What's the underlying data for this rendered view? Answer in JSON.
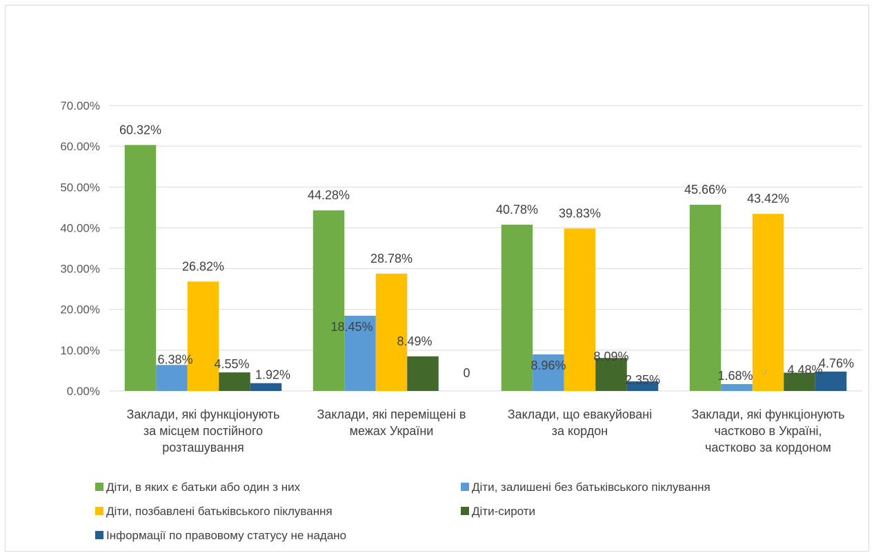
{
  "chart_data": {
    "type": "bar",
    "title": "",
    "xlabel": "",
    "ylabel": "",
    "ylim": [
      0,
      0.7
    ],
    "y_ticks": [
      0,
      0.1,
      0.2,
      0.3,
      0.4,
      0.5,
      0.6,
      0.7
    ],
    "y_tick_labels": [
      "0.00%",
      "10.00%",
      "20.00%",
      "30.00%",
      "40.00%",
      "50.00%",
      "60.00%",
      "70.00%"
    ],
    "grid": true,
    "legend_position": "bottom",
    "categories": [
      [
        "Заклади, які функціонують",
        "за місцем постійного",
        "розташування"
      ],
      [
        "Заклади, які переміщені в",
        "межах України"
      ],
      [
        "Заклади, що евакуйовані",
        "за кордон"
      ],
      [
        "Заклади, які функціонують",
        "частково в Україні,",
        "частково за кордоном"
      ]
    ],
    "series": [
      {
        "name": "Діти, в яких є батьки або один з них",
        "color": "#70ad47",
        "values": [
          0.6032,
          0.4428,
          0.4078,
          0.4566
        ],
        "labels": [
          "60.32%",
          "44.28%",
          "40.78%",
          "45.66%"
        ]
      },
      {
        "name": "Діти, залишені без батьківського піклування",
        "color": "#5b9bd5",
        "values": [
          0.0638,
          0.1845,
          0.0896,
          0.0168
        ],
        "labels": [
          "6.38%",
          "18.45%",
          "8.96%",
          "1.68%"
        ]
      },
      {
        "name": "Діти, позбавлені батьківського піклування",
        "color": "#ffc000",
        "values": [
          0.2682,
          0.2878,
          0.3983,
          0.4342
        ],
        "labels": [
          "26.82%",
          "28.78%",
          "39.83%",
          "43.42%"
        ]
      },
      {
        "name": "Діти-сироти",
        "color": "#43682b",
        "values": [
          0.0455,
          0.0849,
          0.0809,
          0.0448
        ],
        "labels": [
          "4.55%",
          "8.49%",
          "8.09%",
          "4.48%"
        ]
      },
      {
        "name": "Інформації по правовому статусу не надано",
        "color": "#255e91",
        "values": [
          0.0192,
          0,
          0.0235,
          0.0476
        ],
        "labels": [
          "1.92%",
          "0",
          "2.35%",
          "4.76%"
        ]
      }
    ]
  }
}
